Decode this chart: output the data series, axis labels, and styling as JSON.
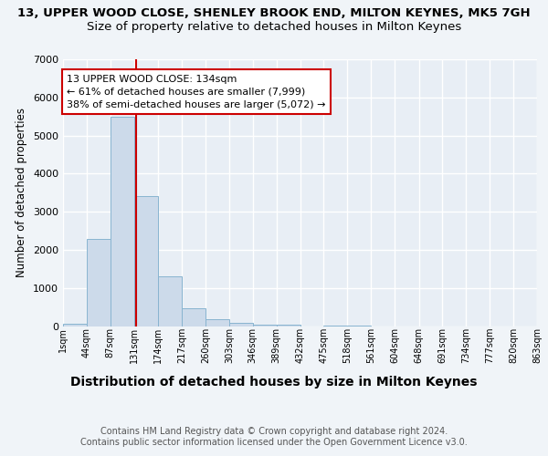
{
  "title": "13, UPPER WOOD CLOSE, SHENLEY BROOK END, MILTON KEYNES, MK5 7GH",
  "subtitle": "Size of property relative to detached houses in Milton Keynes",
  "xlabel": "Distribution of detached houses by size in Milton Keynes",
  "ylabel": "Number of detached properties",
  "footer_line1": "Contains HM Land Registry data © Crown copyright and database right 2024.",
  "footer_line2": "Contains public sector information licensed under the Open Government Licence v3.0.",
  "bar_edges": [
    1,
    44,
    87,
    131,
    174,
    217,
    260,
    303,
    346,
    389,
    432,
    475,
    518,
    561,
    604,
    648,
    691,
    734,
    777,
    820,
    863
  ],
  "bar_heights": [
    50,
    2280,
    5500,
    3400,
    1300,
    470,
    185,
    80,
    45,
    30,
    0,
    10,
    5,
    0,
    0,
    0,
    0,
    0,
    0,
    0
  ],
  "bar_color": "#ccdaea",
  "bar_edgecolor": "#88b4d0",
  "property_line_x": 134,
  "property_line_color": "#cc0000",
  "annotation_text": "13 UPPER WOOD CLOSE: 134sqm\n← 61% of detached houses are smaller (7,999)\n38% of semi-detached houses are larger (5,072) →",
  "annotation_box_color": "#ffffff",
  "annotation_box_edgecolor": "#cc0000",
  "ylim": [
    0,
    7000
  ],
  "xlim": [
    1,
    863
  ],
  "tick_labels": [
    "1sqm",
    "44sqm",
    "87sqm",
    "131sqm",
    "174sqm",
    "217sqm",
    "260sqm",
    "303sqm",
    "346sqm",
    "389sqm",
    "432sqm",
    "475sqm",
    "518sqm",
    "561sqm",
    "604sqm",
    "648sqm",
    "691sqm",
    "734sqm",
    "777sqm",
    "820sqm",
    "863sqm"
  ],
  "tick_positions": [
    1,
    44,
    87,
    131,
    174,
    217,
    260,
    303,
    346,
    389,
    432,
    475,
    518,
    561,
    604,
    648,
    691,
    734,
    777,
    820,
    863
  ],
  "bg_color": "#f0f4f8",
  "plot_bg_color": "#e8eef5",
  "grid_color": "#ffffff",
  "title_fontsize": 9.5,
  "subtitle_fontsize": 9.5,
  "xlabel_fontsize": 10,
  "ylabel_fontsize": 8.5,
  "tick_fontsize": 7,
  "footer_fontsize": 7,
  "annot_fontsize": 8
}
